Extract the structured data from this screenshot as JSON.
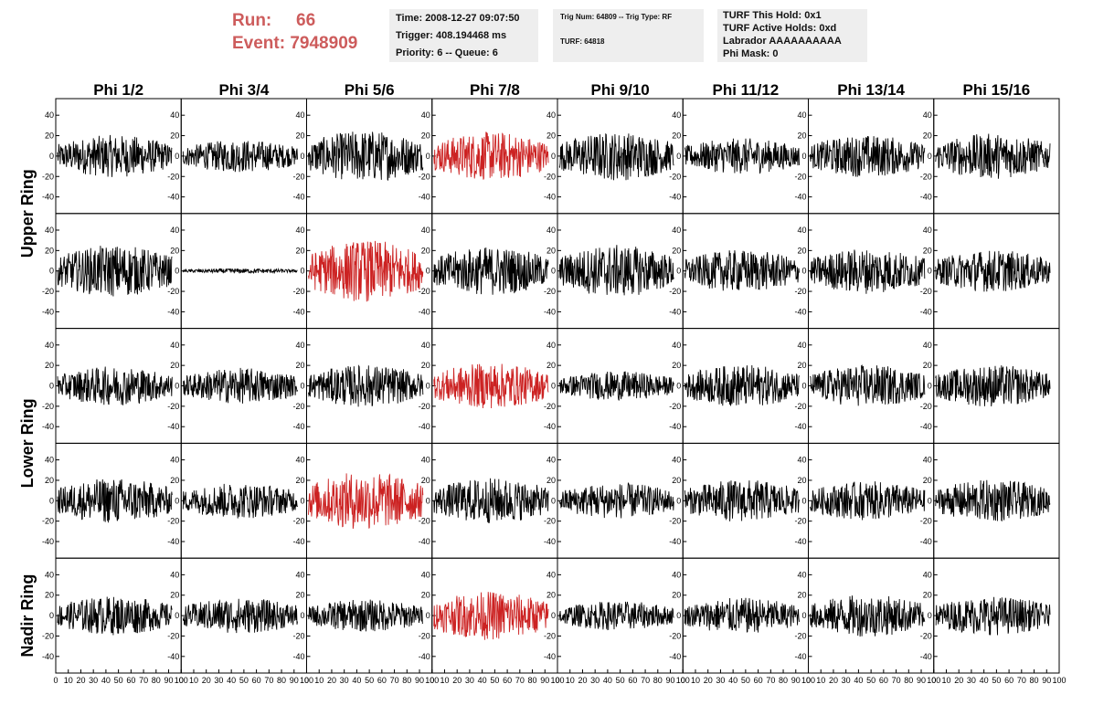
{
  "header": {
    "run_label": "Run:",
    "run_value": "66",
    "event_label": "Event:",
    "event_value": "7948909",
    "time_text": "Time: 2008-12-27 09:07:50",
    "trigger_text": "Trigger: 408.194468 ms",
    "priority_text": "Priority: 6 -- Queue: 6",
    "trig_text": "Trig Num: 64809 -- Trig Type: RF",
    "turf_text": "TURF: 64818",
    "turf_hold_text": "TURF This Hold: 0x1",
    "turf_active_text": "TURF Active Holds: 0xd",
    "labrador_text": "Labrador AAAAAAAAAA",
    "phimask_text": "Phi Mask: 0"
  },
  "colors": {
    "header_red": "#cd5c5c",
    "trace_black": "#000000",
    "trace_red": "#cc2222",
    "box_gray": "#eeeeee"
  },
  "chart_data": {
    "type": "line",
    "columns": [
      "Phi 1/2",
      "Phi 3/4",
      "Phi 5/6",
      "Phi 7/8",
      "Phi 9/10",
      "Phi 11/12",
      "Phi 13/14",
      "Phi 15/16"
    ],
    "rows": [
      "Upper Ring",
      "Lower Ring",
      "Nadir Ring"
    ],
    "y_ticks": [
      "40",
      "20",
      "0",
      "-20",
      "-40"
    ],
    "x_ticks": [
      "0",
      "10",
      "20",
      "30",
      "40",
      "50",
      "60",
      "70",
      "80",
      "90",
      "100"
    ],
    "xlim": [
      0,
      100
    ],
    "ylim": [
      -50,
      50
    ],
    "panels": [
      {
        "row": 0,
        "col": 0,
        "color": "black",
        "amp": 13
      },
      {
        "row": 0,
        "col": 1,
        "color": "black",
        "amp": 10
      },
      {
        "row": 0,
        "col": 2,
        "color": "black",
        "amp": 16
      },
      {
        "row": 0,
        "col": 3,
        "color": "red",
        "amp": 15
      },
      {
        "row": 0,
        "col": 4,
        "color": "black",
        "amp": 15
      },
      {
        "row": 0,
        "col": 5,
        "color": "black",
        "amp": 11
      },
      {
        "row": 0,
        "col": 6,
        "color": "black",
        "amp": 13
      },
      {
        "row": 0,
        "col": 7,
        "color": "black",
        "amp": 14
      },
      {
        "row": 1,
        "col": 0,
        "color": "black",
        "amp": 16
      },
      {
        "row": 1,
        "col": 1,
        "color": "black",
        "amp": 1.5
      },
      {
        "row": 1,
        "col": 2,
        "color": "red",
        "amp": 19
      },
      {
        "row": 1,
        "col": 3,
        "color": "black",
        "amp": 15
      },
      {
        "row": 1,
        "col": 4,
        "color": "black",
        "amp": 16
      },
      {
        "row": 1,
        "col": 5,
        "color": "black",
        "amp": 13
      },
      {
        "row": 1,
        "col": 6,
        "color": "black",
        "amp": 14
      },
      {
        "row": 1,
        "col": 7,
        "color": "black",
        "amp": 13
      },
      {
        "row": 2,
        "col": 0,
        "color": "black",
        "amp": 12
      },
      {
        "row": 2,
        "col": 1,
        "color": "black",
        "amp": 11
      },
      {
        "row": 2,
        "col": 2,
        "color": "black",
        "amp": 13
      },
      {
        "row": 2,
        "col": 3,
        "color": "red",
        "amp": 14
      },
      {
        "row": 2,
        "col": 4,
        "color": "black",
        "amp": 9
      },
      {
        "row": 2,
        "col": 5,
        "color": "black",
        "amp": 13
      },
      {
        "row": 2,
        "col": 6,
        "color": "black",
        "amp": 13
      },
      {
        "row": 2,
        "col": 7,
        "color": "black",
        "amp": 13
      },
      {
        "row": 3,
        "col": 0,
        "color": "black",
        "amp": 14
      },
      {
        "row": 3,
        "col": 1,
        "color": "black",
        "amp": 11
      },
      {
        "row": 3,
        "col": 2,
        "color": "red",
        "amp": 18
      },
      {
        "row": 3,
        "col": 3,
        "color": "black",
        "amp": 14
      },
      {
        "row": 3,
        "col": 4,
        "color": "black",
        "amp": 11
      },
      {
        "row": 3,
        "col": 5,
        "color": "black",
        "amp": 13
      },
      {
        "row": 3,
        "col": 6,
        "color": "black",
        "amp": 12
      },
      {
        "row": 3,
        "col": 7,
        "color": "black",
        "amp": 13
      },
      {
        "row": 4,
        "col": 0,
        "color": "black",
        "amp": 12
      },
      {
        "row": 4,
        "col": 1,
        "color": "black",
        "amp": 11
      },
      {
        "row": 4,
        "col": 2,
        "color": "black",
        "amp": 10
      },
      {
        "row": 4,
        "col": 3,
        "color": "red",
        "amp": 15
      },
      {
        "row": 4,
        "col": 4,
        "color": "black",
        "amp": 9
      },
      {
        "row": 4,
        "col": 5,
        "color": "black",
        "amp": 11
      },
      {
        "row": 4,
        "col": 6,
        "color": "black",
        "amp": 13
      },
      {
        "row": 4,
        "col": 7,
        "color": "black",
        "amp": 12
      }
    ]
  }
}
